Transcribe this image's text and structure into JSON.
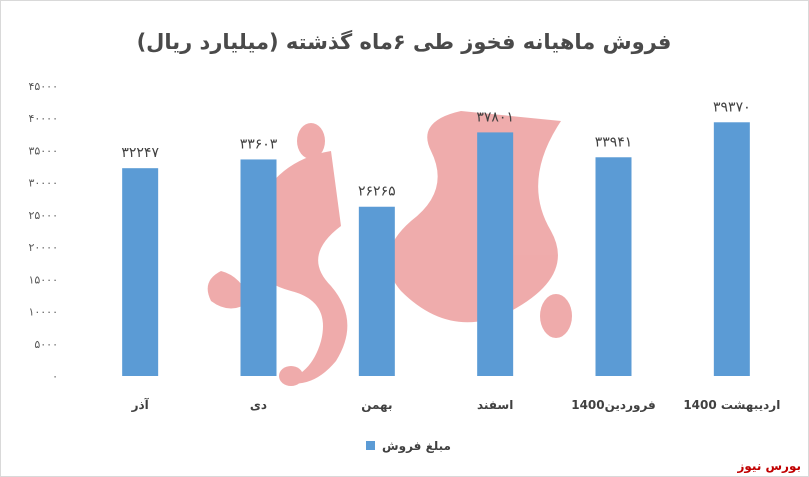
{
  "chart_data": {
    "type": "bar",
    "title": "فروش ماهیانه فخوز طی ۶ماه گذشته (میلیارد ریال)",
    "categories": [
      "آذر",
      "دی",
      "بهمن",
      "اسفند",
      "فروردین1400",
      "اردیبهشت 1400"
    ],
    "series": [
      {
        "name": "مبلغ فروش",
        "values": [
          32247,
          33603,
          26265,
          37801,
          33941,
          39370
        ],
        "value_labels": [
          "۳۲۲۴۷",
          "۳۳۶۰۳",
          "۲۶۲۶۵",
          "۳۷۸۰۱",
          "۳۳۹۴۱",
          "۳۹۳۷۰"
        ]
      }
    ],
    "ylim": [
      0,
      45000
    ],
    "yticks": [
      0,
      5000,
      10000,
      15000,
      20000,
      25000,
      30000,
      35000,
      40000,
      45000
    ],
    "ytick_labels": [
      "۰",
      "۵۰۰۰",
      "۱۰۰۰۰",
      "۱۵۰۰۰",
      "۲۰۰۰۰",
      "۲۵۰۰۰",
      "۳۰۰۰۰",
      "۳۵۰۰۰",
      "۴۰۰۰۰",
      "۴۵۰۰۰"
    ],
    "grid": false,
    "legend": "bottom-center",
    "colors": {
      "bar": "#5b9bd5"
    }
  },
  "watermark": {
    "text": "بورس نیوز",
    "color": "#c00000"
  }
}
